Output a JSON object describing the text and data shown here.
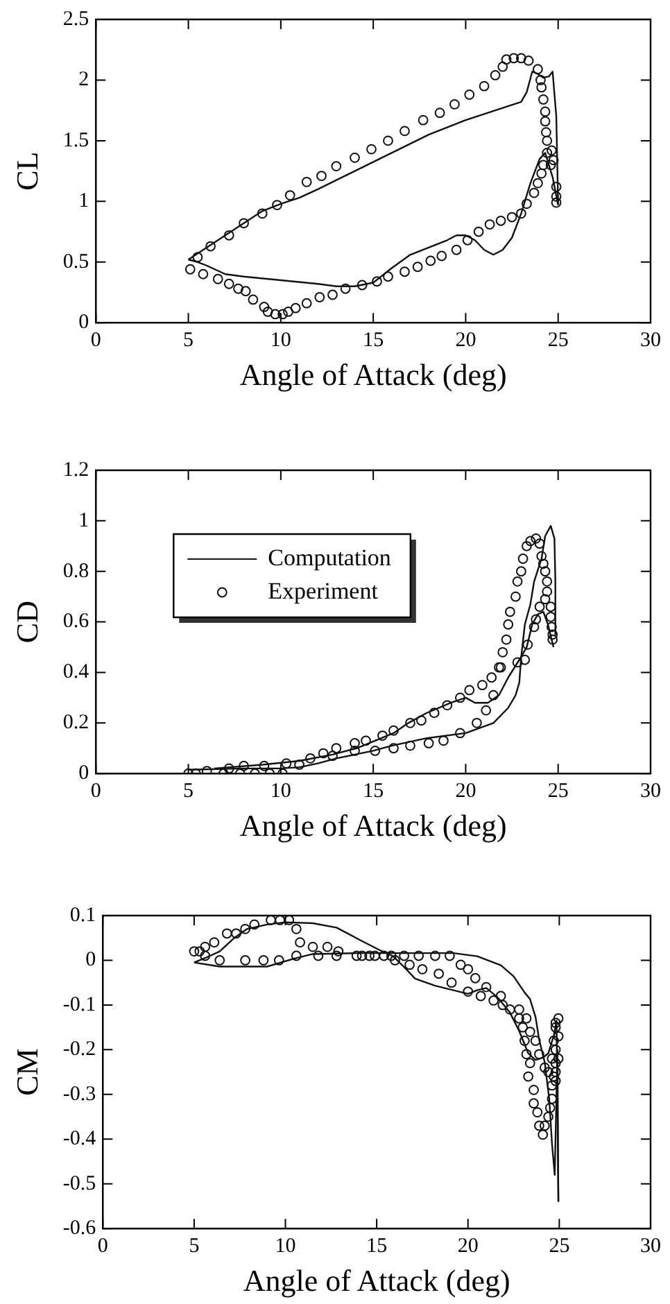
{
  "chart_data": [
    {
      "type": "scatter",
      "xlabel": "Angle of Attack (deg)",
      "ylabel": "CL",
      "xlim": [
        0,
        30
      ],
      "xticks": [
        0,
        5,
        10,
        15,
        20,
        25,
        30
      ],
      "ylim": [
        0,
        2.5
      ],
      "yticks": [
        0,
        0.5,
        1,
        1.5,
        2,
        2.5
      ],
      "legend": false,
      "series": [
        {
          "type": "line",
          "color": "#111111",
          "marker": "none",
          "line_style": "solid",
          "x": [
            5,
            6,
            7,
            8,
            9,
            10,
            11,
            12,
            14,
            16,
            18,
            20,
            22,
            23,
            23.3,
            23.6,
            23.9,
            24.2,
            24.5,
            24.7,
            24.9,
            25
          ],
          "values": [
            0.52,
            0.62,
            0.72,
            0.82,
            0.92,
            0.98,
            1.03,
            1.1,
            1.25,
            1.4,
            1.55,
            1.67,
            1.77,
            1.82,
            1.9,
            2.07,
            2.05,
            2.02,
            2.03,
            2.07,
            1.7,
            0.97
          ]
        },
        {
          "type": "line",
          "color": "#111111",
          "marker": "none",
          "line_style": "solid",
          "x": [
            25,
            24.7,
            24.3,
            24,
            23.5,
            23,
            22.5,
            22,
            21.5,
            21,
            20.5,
            20,
            19.5,
            19,
            18,
            17,
            16,
            15,
            14,
            13,
            12,
            10,
            8,
            7,
            6,
            5.5,
            5
          ],
          "values": [
            0.97,
            1.2,
            1.4,
            1.35,
            1.15,
            0.9,
            0.7,
            0.6,
            0.56,
            0.6,
            0.68,
            0.72,
            0.72,
            0.68,
            0.62,
            0.56,
            0.45,
            0.33,
            0.3,
            0.3,
            0.32,
            0.35,
            0.38,
            0.4,
            0.47,
            0.5,
            0.52
          ]
        },
        {
          "type": "scatter",
          "color": "#111111",
          "marker": "circle",
          "x": [
            5.1,
            5.5,
            6.2,
            7.2,
            8,
            9,
            9.8,
            10.5,
            11.4,
            12.2,
            13,
            14,
            14.9,
            15.8,
            16.7,
            17.7,
            18.6,
            19.4,
            20.2,
            21,
            21.6,
            22,
            22.2,
            22.6,
            23,
            23.4,
            23.9,
            24.05,
            24.1,
            24.2,
            24.3,
            24.3,
            24.35,
            24.4,
            24.4,
            24.65,
            24.75,
            24.6,
            24.2,
            24.1,
            23.9,
            23.7,
            23.3,
            23,
            22.5,
            21.9,
            21.3,
            20.7,
            20.1,
            19.5,
            18.7,
            18.1,
            17.4,
            16.7,
            15.8,
            15.2,
            14.4,
            13.5,
            12.8,
            12.1,
            11.4,
            10.8,
            10.4,
            10.1,
            9.7,
            9.3,
            9.1,
            8.5,
            8.1,
            7.7,
            7.2,
            6.6,
            5.8,
            24.9,
            24.9,
            24.9
          ],
          "values": [
            0.44,
            0.54,
            0.63,
            0.72,
            0.82,
            0.9,
            0.97,
            1.05,
            1.16,
            1.21,
            1.29,
            1.36,
            1.43,
            1.5,
            1.58,
            1.67,
            1.73,
            1.8,
            1.88,
            1.95,
            2.04,
            2.11,
            2.17,
            2.18,
            2.18,
            2.16,
            2.09,
            2,
            1.94,
            1.84,
            1.74,
            1.66,
            1.57,
            1.5,
            1.4,
            1.42,
            1.34,
            1.3,
            1.3,
            1.23,
            1.15,
            1.07,
            0.98,
            0.9,
            0.87,
            0.84,
            0.81,
            0.75,
            0.68,
            0.6,
            0.55,
            0.51,
            0.46,
            0.42,
            0.38,
            0.34,
            0.31,
            0.28,
            0.23,
            0.21,
            0.16,
            0.12,
            0.09,
            0.07,
            0.07,
            0.09,
            0.13,
            0.19,
            0.26,
            0.28,
            0.32,
            0.36,
            0.4,
            1.12,
            1.04,
            0.99
          ]
        }
      ]
    },
    {
      "type": "scatter",
      "xlabel": "Angle of Attack (deg)",
      "ylabel": "CD",
      "xlim": [
        0,
        30
      ],
      "xticks": [
        0,
        5,
        10,
        15,
        20,
        25,
        30
      ],
      "ylim": [
        0,
        1.2
      ],
      "yticks": [
        0,
        0.2,
        0.4,
        0.6,
        0.8,
        1,
        1.2
      ],
      "legend": "top left",
      "series": [
        {
          "type": "line",
          "name": "Computation",
          "color": "#111111",
          "marker": "none",
          "line_style": "solid",
          "x": [
            5,
            8,
            10,
            11,
            12,
            13,
            14,
            15,
            16,
            17.9,
            20,
            21.5,
            22.3,
            22.7,
            22.9,
            23,
            23.2,
            23.5,
            23.7,
            24.1,
            24.3,
            24.6,
            24.8,
            24.85,
            24.85
          ],
          "values": [
            0.015,
            0.02,
            0.02,
            0.025,
            0.04,
            0.06,
            0.075,
            0.09,
            0.11,
            0.14,
            0.16,
            0.2,
            0.26,
            0.31,
            0.36,
            0.46,
            0.59,
            0.67,
            0.76,
            0.85,
            0.94,
            0.98,
            0.93,
            0.76,
            0.55
          ]
        },
        {
          "type": "line",
          "color": "#111111",
          "marker": "none",
          "line_style": "solid",
          "x": [
            24.75,
            24.45,
            24.2,
            23.9,
            23.6,
            23.3,
            22.9,
            22.3,
            21.8,
            21.2,
            20.5,
            20,
            19.2,
            17.9,
            16.9,
            16.1,
            15.1,
            14.1,
            12.8,
            11,
            9,
            6.4
          ],
          "values": [
            0.5,
            0.59,
            0.64,
            0.63,
            0.59,
            0.5,
            0.45,
            0.38,
            0.31,
            0.28,
            0.28,
            0.3,
            0.28,
            0.24,
            0.2,
            0.16,
            0.13,
            0.1,
            0.075,
            0.05,
            0.035,
            0.02
          ]
        },
        {
          "type": "scatter",
          "name": "Experiment",
          "color": "#111111",
          "marker": "circle",
          "x": [
            5,
            5.4,
            6,
            6.9,
            7.2,
            7.8,
            8,
            8.6,
            9.1,
            9.4,
            10.1,
            10.3,
            11,
            11.6,
            12.3,
            12.8,
            13,
            14,
            14,
            14.6,
            15.5,
            16.1,
            15.1,
            16.1,
            17,
            17,
            17.6,
            18,
            18.3,
            18.8,
            19,
            19.7,
            19.7,
            20.2,
            20.6,
            20.9,
            21.1,
            21.4,
            21.5,
            21.9,
            22,
            22.2,
            22.3,
            22.4,
            22.7,
            22.8,
            23,
            23.1,
            23.3,
            23.5,
            23.8,
            24,
            24.1,
            24.2,
            24.3,
            24.4,
            24.4,
            24.6,
            24.6,
            24.65,
            24.7,
            24.7,
            24.3,
            24,
            23.8,
            23.7,
            23.35,
            23.2,
            22.8,
            21.8
          ],
          "values": [
            0,
            0,
            0.01,
            0,
            0.02,
            0,
            0.03,
            0,
            0.03,
            0,
            0,
            0.04,
            0.035,
            0.06,
            0.08,
            0.07,
            0.1,
            0.12,
            0.09,
            0.13,
            0.15,
            0.17,
            0.09,
            0.1,
            0.2,
            0.11,
            0.21,
            0.12,
            0.24,
            0.13,
            0.27,
            0.16,
            0.3,
            0.33,
            0.2,
            0.35,
            0.25,
            0.38,
            0.31,
            0.42,
            0.48,
            0.53,
            0.59,
            0.64,
            0.7,
            0.76,
            0.8,
            0.85,
            0.9,
            0.92,
            0.93,
            0.91,
            0.86,
            0.83,
            0.8,
            0.76,
            0.72,
            0.66,
            0.62,
            0.58,
            0.55,
            0.53,
            0.69,
            0.66,
            0.61,
            0.58,
            0.51,
            0.45,
            0.44,
            0.42
          ]
        }
      ]
    },
    {
      "type": "scatter",
      "xlabel": "Angle of Attack (deg)",
      "ylabel": "CM",
      "xlim": [
        0,
        30
      ],
      "xticks": [
        0,
        5,
        10,
        15,
        20,
        25,
        30
      ],
      "ylim": [
        -0.6,
        0.1
      ],
      "yticks": [
        -0.6,
        -0.5,
        -0.4,
        -0.3,
        -0.2,
        -0.1,
        0,
        0.1
      ],
      "legend": false,
      "series": [
        {
          "type": "line",
          "color": "#111111",
          "marker": "none",
          "line_style": "solid",
          "x": [
            5,
            5.6,
            6.4,
            7.2,
            7.9,
            9,
            10,
            11.5,
            12.8,
            14.1,
            15.1,
            15.9,
            16.4,
            17.1,
            18.2,
            19.2,
            20,
            20.5,
            21,
            21.6,
            22.3,
            22.8,
            23.3,
            23.7,
            24.1,
            24.4,
            24.7,
            24.85,
            24.95
          ],
          "values": [
            -0.005,
            0.005,
            0.02,
            0.05,
            0.07,
            0.08,
            0.085,
            0.083,
            0.073,
            0.045,
            0.024,
            0.009,
            -0.011,
            -0.041,
            -0.057,
            -0.067,
            -0.075,
            -0.067,
            -0.062,
            -0.082,
            -0.117,
            -0.158,
            -0.208,
            -0.223,
            -0.218,
            -0.208,
            -0.168,
            -0.135,
            -0.54
          ]
        },
        {
          "type": "line",
          "color": "#111111",
          "marker": "none",
          "line_style": "solid",
          "x": [
            24.95,
            24.9,
            24.75,
            24.6,
            24.45,
            24.2,
            23.9,
            23.7,
            23.4,
            23.1,
            22.5,
            21.8,
            20.5,
            19.2,
            16.6,
            14.1,
            11.5,
            10.5,
            9,
            6.4,
            5
          ],
          "values": [
            -0.54,
            -0.2,
            -0.48,
            -0.41,
            -0.31,
            -0.228,
            -0.178,
            -0.127,
            -0.087,
            -0.072,
            -0.036,
            -0.011,
            0.009,
            0.016,
            0.016,
            0.016,
            0.014,
            0.004,
            -0.014,
            -0.014,
            -0.005
          ]
        },
        {
          "type": "scatter",
          "color": "#111111",
          "marker": "circle",
          "x": [
            5,
            5.3,
            5.6,
            6.1,
            5.6,
            6.4,
            6.8,
            7.3,
            7.8,
            8.3,
            7.8,
            8.8,
            9.2,
            9.7,
            9.65,
            10.2,
            10.6,
            10.6,
            10.8,
            11.5,
            11.8,
            12.3,
            12.8,
            12.9,
            13.9,
            14.2,
            14.6,
            14.9,
            15.4,
            15.8,
            16,
            16.5,
            16.8,
            17.3,
            17.5,
            18.2,
            18.4,
            19,
            19.1,
            19.6,
            20,
            20,
            20.4,
            20.7,
            21,
            21.4,
            21.8,
            21.9,
            22.3,
            22.8,
            22.8,
            23.2,
            23.4,
            23,
            23.1,
            23.7,
            23.2,
            23.4,
            23.3,
            23.6,
            23.6,
            23.8,
            23.9,
            24.2,
            24.1,
            23.9,
            24.2,
            24.4,
            24.4,
            24.5,
            24.6,
            24.6,
            24.7,
            24.6,
            24.8,
            24.7,
            24.8,
            24.8,
            24.95,
            24.95,
            24.95,
            24.8,
            24.8,
            24.8
          ],
          "values": [
            0.02,
            0.02,
            0.03,
            0.04,
            0.01,
            0,
            0.06,
            0.06,
            0.07,
            0.08,
            0,
            0,
            0.09,
            0.09,
            0,
            0.09,
            0.07,
            0.01,
            0.04,
            0.03,
            0.01,
            0.03,
            0.01,
            0.02,
            0.01,
            0.01,
            0.01,
            0.01,
            0.01,
            0.01,
            0,
            0.01,
            -0.01,
            0.01,
            -0.02,
            0.01,
            -0.03,
            0.01,
            -0.05,
            -0.01,
            -0.02,
            -0.07,
            -0.04,
            -0.08,
            -0.06,
            -0.09,
            -0.08,
            -0.1,
            -0.11,
            -0.11,
            -0.13,
            -0.13,
            -0.16,
            -0.15,
            -0.18,
            -0.18,
            -0.21,
            -0.23,
            -0.26,
            -0.29,
            -0.32,
            -0.34,
            -0.37,
            -0.37,
            -0.39,
            -0.21,
            -0.24,
            -0.25,
            -0.35,
            -0.33,
            -0.31,
            -0.28,
            -0.26,
            -0.22,
            -0.2,
            -0.18,
            -0.15,
            -0.14,
            -0.13,
            -0.17,
            -0.22,
            -0.23,
            -0.25,
            -0.27
          ]
        }
      ]
    }
  ]
}
